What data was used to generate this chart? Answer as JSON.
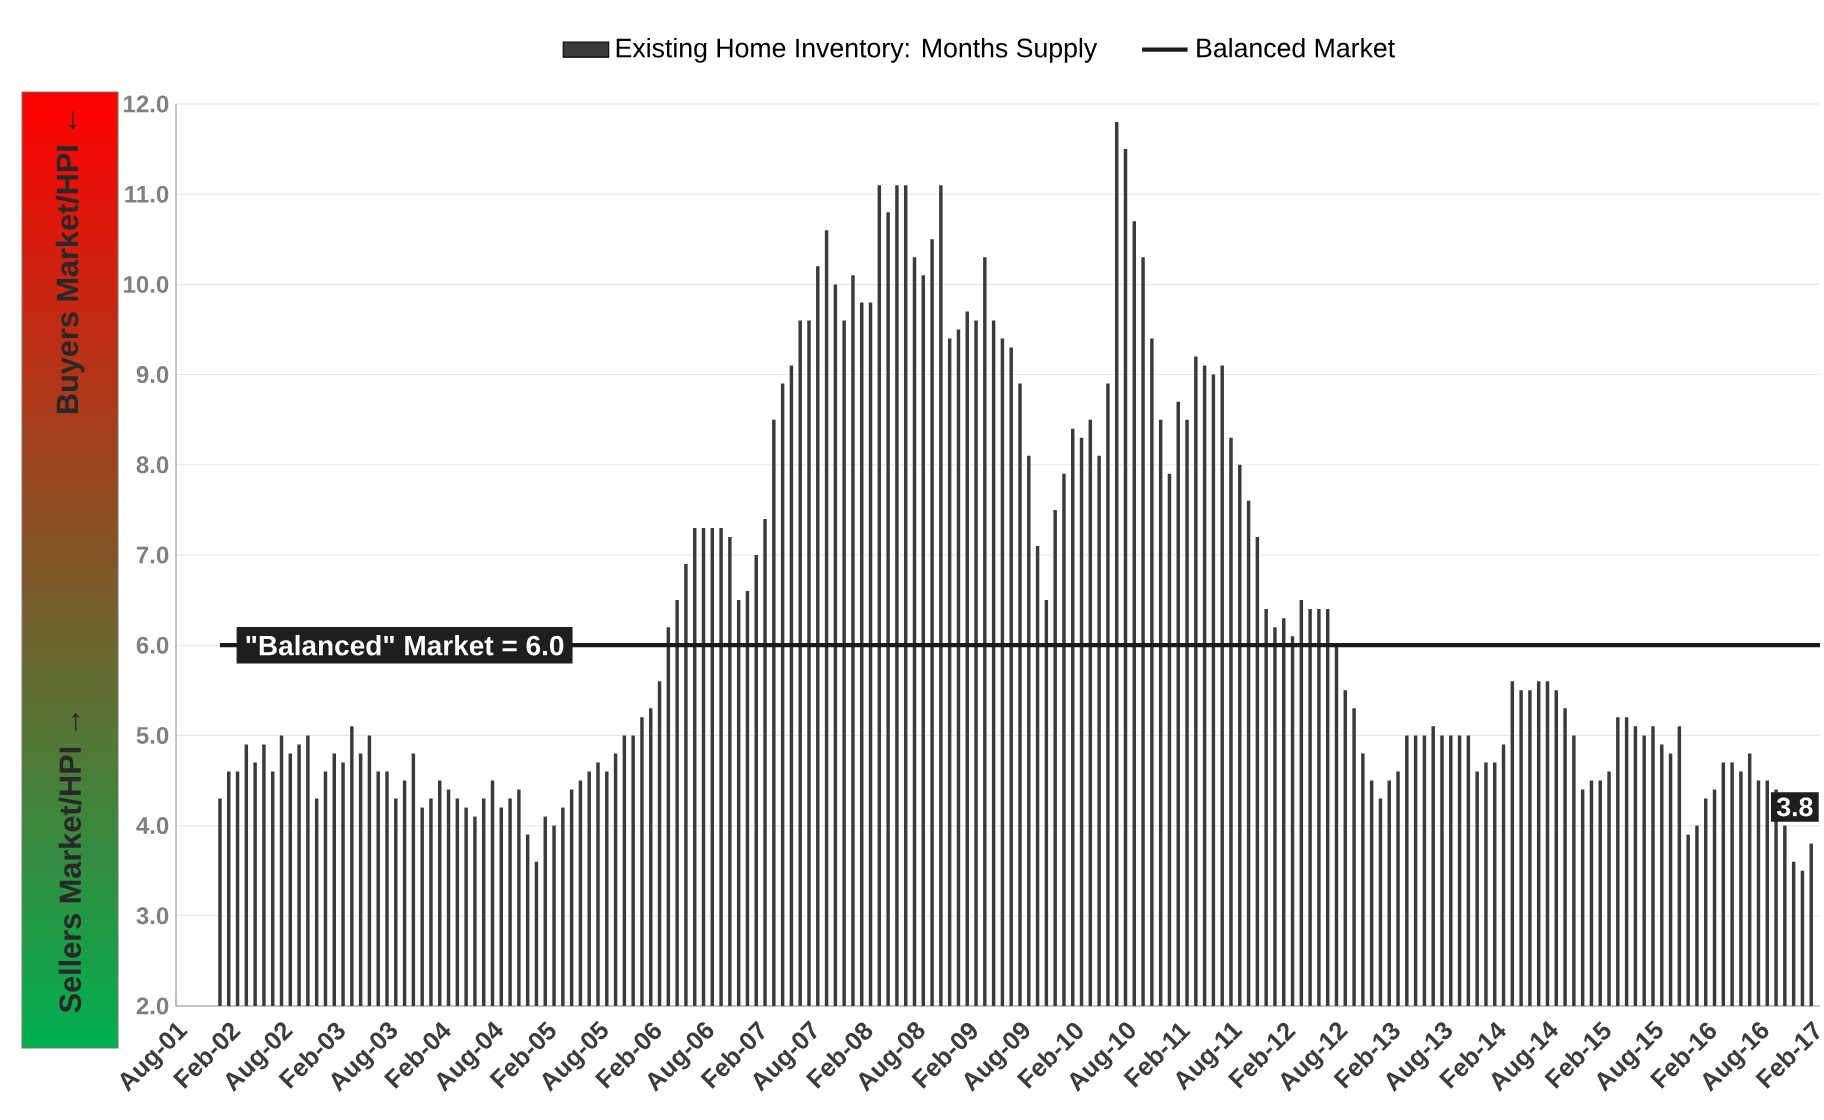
{
  "chart_data": {
    "type": "bar",
    "legend": "top",
    "grid": "y",
    "x": [
      "2002-01",
      "2002-02",
      "2002-03",
      "2002-04",
      "2002-05",
      "2002-06",
      "2002-07",
      "2002-08",
      "2002-09",
      "2002-10",
      "2002-11",
      "2002-12",
      "2003-01",
      "2003-02",
      "2003-03",
      "2003-04",
      "2003-05",
      "2003-06",
      "2003-07",
      "2003-08",
      "2003-09",
      "2003-10",
      "2003-11",
      "2003-12",
      "2004-01",
      "2004-02",
      "2004-03",
      "2004-04",
      "2004-05",
      "2004-06",
      "2004-07",
      "2004-08",
      "2004-09",
      "2004-10",
      "2004-11",
      "2004-12",
      "2005-01",
      "2005-02",
      "2005-03",
      "2005-04",
      "2005-05",
      "2005-06",
      "2005-07",
      "2005-08",
      "2005-09",
      "2005-10",
      "2005-11",
      "2005-12",
      "2006-01",
      "2006-02",
      "2006-03",
      "2006-04",
      "2006-05",
      "2006-06",
      "2006-07",
      "2006-08",
      "2006-09",
      "2006-10",
      "2006-11",
      "2006-12",
      "2007-01",
      "2007-02",
      "2007-03",
      "2007-04",
      "2007-05",
      "2007-06",
      "2007-07",
      "2007-08",
      "2007-09",
      "2007-10",
      "2007-11",
      "2007-12",
      "2008-01",
      "2008-02",
      "2008-03",
      "2008-04",
      "2008-05",
      "2008-06",
      "2008-07",
      "2008-08",
      "2008-09",
      "2008-10",
      "2008-11",
      "2008-12",
      "2009-01",
      "2009-02",
      "2009-03",
      "2009-04",
      "2009-05",
      "2009-06",
      "2009-07",
      "2009-08",
      "2009-09",
      "2009-10",
      "2009-11",
      "2009-12",
      "2010-01",
      "2010-02",
      "2010-03",
      "2010-04",
      "2010-05",
      "2010-06",
      "2010-07",
      "2010-08",
      "2010-09",
      "2010-10",
      "2010-11",
      "2010-12",
      "2011-01",
      "2011-02",
      "2011-03",
      "2011-04",
      "2011-05",
      "2011-06",
      "2011-07",
      "2011-08",
      "2011-09",
      "2011-10",
      "2011-11",
      "2011-12",
      "2012-01",
      "2012-02",
      "2012-03",
      "2012-04",
      "2012-05",
      "2012-06",
      "2012-07",
      "2012-08",
      "2012-09",
      "2012-10",
      "2012-11",
      "2012-12",
      "2013-01",
      "2013-02",
      "2013-03",
      "2013-04",
      "2013-05",
      "2013-06",
      "2013-07",
      "2013-08",
      "2013-09",
      "2013-10",
      "2013-11",
      "2013-12",
      "2014-01",
      "2014-02",
      "2014-03",
      "2014-04",
      "2014-05",
      "2014-06",
      "2014-07",
      "2014-08",
      "2014-09",
      "2014-10",
      "2014-11",
      "2014-12",
      "2015-01",
      "2015-02",
      "2015-03",
      "2015-04",
      "2015-05",
      "2015-06",
      "2015-07",
      "2015-08",
      "2015-09",
      "2015-10",
      "2015-11",
      "2015-12",
      "2016-01",
      "2016-02",
      "2016-03",
      "2016-04",
      "2016-05",
      "2016-06",
      "2016-07",
      "2016-08",
      "2016-09",
      "2016-10",
      "2016-11",
      "2016-12",
      "2017-01",
      "2017-02"
    ],
    "series": [
      {
        "name": "Existing Home Inventory:  Months Supply",
        "color": "#3a3a3a",
        "values": [
          4.3,
          4.6,
          4.6,
          4.9,
          4.7,
          4.9,
          4.6,
          5.0,
          4.8,
          4.9,
          5.0,
          4.3,
          4.6,
          4.8,
          4.7,
          5.1,
          4.8,
          5.0,
          4.6,
          4.6,
          4.3,
          4.5,
          4.8,
          4.2,
          4.3,
          4.5,
          4.4,
          4.3,
          4.2,
          4.1,
          4.3,
          4.5,
          4.2,
          4.3,
          4.4,
          3.9,
          3.6,
          4.1,
          4.0,
          4.2,
          4.4,
          4.5,
          4.6,
          4.7,
          4.6,
          4.8,
          5.0,
          5.0,
          5.2,
          5.3,
          5.6,
          6.2,
          6.5,
          6.9,
          7.3,
          7.3,
          7.3,
          7.3,
          7.2,
          6.5,
          6.6,
          7.0,
          7.4,
          8.5,
          8.9,
          9.1,
          9.6,
          9.6,
          10.2,
          10.6,
          10.0,
          9.6,
          10.1,
          9.8,
          9.8,
          11.1,
          10.8,
          11.1,
          11.1,
          10.3,
          10.1,
          10.5,
          11.1,
          9.4,
          9.5,
          9.7,
          9.6,
          10.3,
          9.6,
          9.4,
          9.3,
          8.9,
          8.1,
          7.1,
          6.5,
          7.5,
          7.9,
          8.4,
          8.3,
          8.5,
          8.1,
          8.9,
          11.8,
          11.5,
          10.7,
          10.3,
          9.4,
          8.5,
          7.9,
          8.7,
          8.5,
          9.2,
          9.1,
          9.0,
          9.1,
          8.3,
          8.0,
          7.6,
          7.2,
          6.4,
          6.2,
          6.3,
          6.1,
          6.5,
          6.4,
          6.4,
          6.4,
          6.0,
          5.5,
          5.3,
          4.8,
          4.5,
          4.3,
          4.5,
          4.6,
          5.0,
          5.0,
          5.0,
          5.1,
          5.0,
          5.0,
          5.0,
          5.0,
          4.6,
          4.7,
          4.7,
          4.9,
          5.6,
          5.5,
          5.5,
          5.6,
          5.6,
          5.5,
          5.3,
          5.0,
          4.4,
          4.5,
          4.5,
          4.6,
          5.2,
          5.2,
          5.1,
          5.0,
          5.1,
          4.9,
          4.8,
          5.1,
          3.9,
          4.0,
          4.3,
          4.4,
          4.7,
          4.7,
          4.6,
          4.8,
          4.5,
          4.5,
          4.4,
          4.0,
          3.6,
          3.5,
          3.8
        ],
        "value_labels": [
          null,
          null,
          null,
          null,
          null,
          null,
          null,
          null,
          null,
          null,
          null,
          null,
          null,
          null,
          null,
          null,
          null,
          null,
          null,
          null,
          null,
          null,
          null,
          null,
          null,
          null,
          null,
          null,
          null,
          null,
          null,
          null,
          null,
          null,
          null,
          null,
          null,
          null,
          null,
          null,
          null,
          null,
          null,
          null,
          null,
          null,
          null,
          null,
          null,
          null,
          null,
          null,
          null,
          null,
          null,
          null,
          null,
          null,
          null,
          null,
          null,
          null,
          null,
          null,
          null,
          null,
          null,
          null,
          null,
          null,
          null,
          null,
          null,
          null,
          null,
          null,
          null,
          null,
          null,
          null,
          null,
          null,
          null,
          null,
          null,
          null,
          null,
          null,
          null,
          null,
          null,
          null,
          null,
          null,
          null,
          null,
          null,
          null,
          null,
          null,
          null,
          null,
          null,
          null,
          null,
          null,
          null,
          null,
          null,
          null,
          null,
          null,
          null,
          null,
          null,
          null,
          null,
          null,
          null,
          null,
          null,
          null,
          null,
          null,
          null,
          null,
          null,
          null,
          null,
          null,
          null,
          null,
          null,
          null,
          null,
          null,
          null,
          null,
          null,
          null,
          null,
          null,
          null,
          null,
          null,
          null,
          null,
          null,
          null,
          null,
          null,
          null,
          null,
          null,
          null,
          null,
          null,
          null,
          null,
          null,
          null,
          null,
          null,
          null,
          null,
          null,
          null,
          null,
          null,
          null,
          null,
          null,
          null,
          null,
          null,
          null,
          null,
          null,
          null,
          null,
          null,
          "3.8"
        ]
      },
      {
        "name": "Balanced Market",
        "type": "line",
        "color": "#1a1a1a",
        "x": [
          "2002-01",
          "2017-03"
        ],
        "values": [
          6.0,
          6.0
        ]
      }
    ],
    "xlim": [
      "2001-08",
      "2017-03"
    ],
    "xticks": [
      {
        "value": "2001-08",
        "label": "Aug-01"
      },
      {
        "value": "2002-02",
        "label": "Feb-02"
      },
      {
        "value": "2002-08",
        "label": "Aug-02"
      },
      {
        "value": "2003-02",
        "label": "Feb-03"
      },
      {
        "value": "2003-08",
        "label": "Aug-03"
      },
      {
        "value": "2004-02",
        "label": "Feb-04"
      },
      {
        "value": "2004-08",
        "label": "Aug-04"
      },
      {
        "value": "2005-02",
        "label": "Feb-05"
      },
      {
        "value": "2005-08",
        "label": "Aug-05"
      },
      {
        "value": "2006-02",
        "label": "Feb-06"
      },
      {
        "value": "2006-08",
        "label": "Aug-06"
      },
      {
        "value": "2007-02",
        "label": "Feb-07"
      },
      {
        "value": "2007-08",
        "label": "Aug-07"
      },
      {
        "value": "2008-02",
        "label": "Feb-08"
      },
      {
        "value": "2008-08",
        "label": "Aug-08"
      },
      {
        "value": "2009-02",
        "label": "Feb-09"
      },
      {
        "value": "2009-08",
        "label": "Aug-09"
      },
      {
        "value": "2010-02",
        "label": "Feb-10"
      },
      {
        "value": "2010-08",
        "label": "Aug-10"
      },
      {
        "value": "2011-02",
        "label": "Feb-11"
      },
      {
        "value": "2011-08",
        "label": "Aug-11"
      },
      {
        "value": "2012-02",
        "label": "Feb-12"
      },
      {
        "value": "2012-08",
        "label": "Aug-12"
      },
      {
        "value": "2013-02",
        "label": "Feb-13"
      },
      {
        "value": "2013-08",
        "label": "Aug-13"
      },
      {
        "value": "2014-02",
        "label": "Feb-14"
      },
      {
        "value": "2014-08",
        "label": "Aug-14"
      },
      {
        "value": "2015-02",
        "label": "Feb-15"
      },
      {
        "value": "2015-08",
        "label": "Aug-15"
      },
      {
        "value": "2016-02",
        "label": "Feb-16"
      },
      {
        "value": "2016-08",
        "label": "Aug-16"
      },
      {
        "value": "2017-02",
        "label": "Feb-17"
      }
    ],
    "ylim": [
      2.0,
      12.0
    ],
    "yticks": [
      {
        "value": 2,
        "label": "2.0"
      },
      {
        "value": 3,
        "label": "3.0"
      },
      {
        "value": 4,
        "label": "4.0"
      },
      {
        "value": 5,
        "label": "5.0"
      },
      {
        "value": 6,
        "label": "6.0"
      },
      {
        "value": 7,
        "label": "7.0"
      },
      {
        "value": 8,
        "label": "8.0"
      },
      {
        "value": 9,
        "label": "9.0"
      },
      {
        "value": 10,
        "label": "10.0"
      },
      {
        "value": 11,
        "label": "11.0"
      },
      {
        "value": 12,
        "label": "12.0"
      }
    ],
    "annotations": [
      {
        "text": "\"Balanced\" Market = 6.0",
        "x": "2003-10",
        "y": 6.0
      },
      "Buyers Market/HPI ←",
      "Sellers Market/HPI →"
    ]
  }
}
